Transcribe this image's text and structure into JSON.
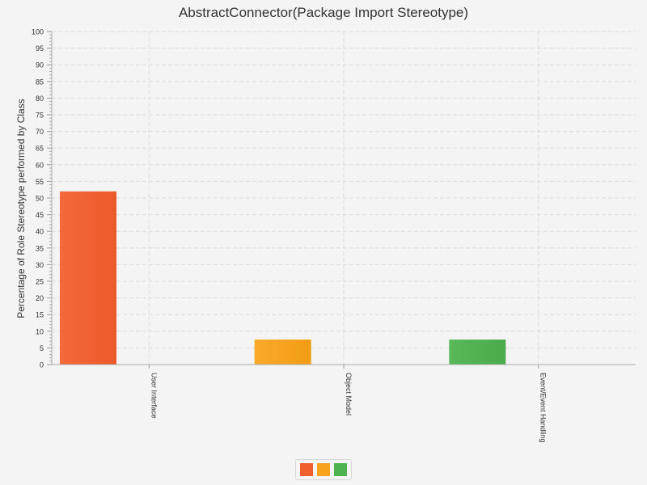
{
  "chart_data": {
    "type": "bar",
    "title": "AbstractConnector(Package Import Stereotype)",
    "ylabel": "Percentage of Role Stereotype performed by Class",
    "xlabel": "",
    "ylim": [
      0,
      100
    ],
    "ytick_step": 5,
    "grid": true,
    "legend_position": "bottom",
    "categories": [
      "User Interface",
      "Object Model",
      "Event/Event Handling"
    ],
    "colors": [
      "#f0602e",
      "#f7a21b",
      "#4fb251"
    ],
    "values": [
      52,
      7.5,
      7.5
    ]
  }
}
